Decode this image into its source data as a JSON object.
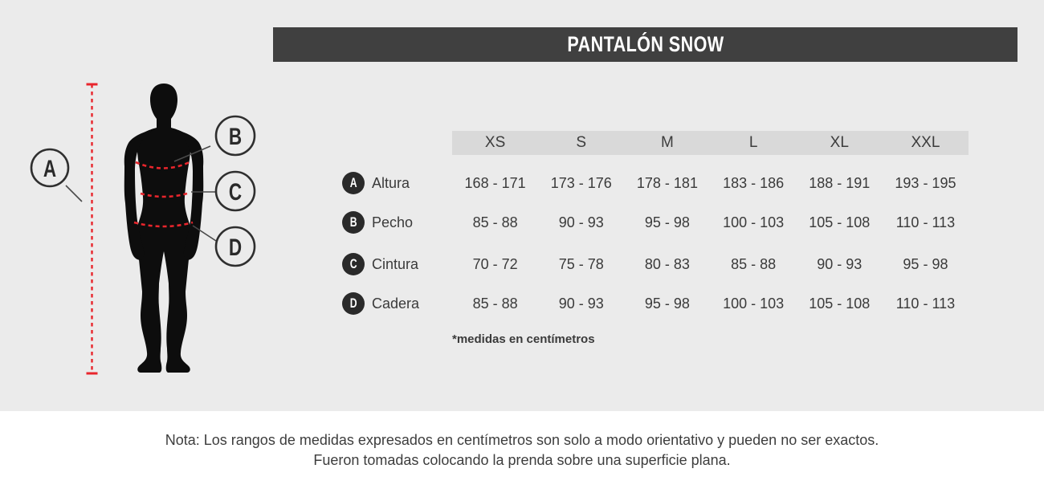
{
  "title": "PANTALÓN SNOW",
  "table": {
    "sizes": [
      "XS",
      "S",
      "M",
      "L",
      "XL",
      "XXL"
    ],
    "rows": [
      {
        "key": "A",
        "label": "Altura",
        "values": [
          "168 - 171",
          "173 - 176",
          "178 - 181",
          "183 - 186",
          "188 - 191",
          "193 - 195"
        ]
      },
      {
        "key": "B",
        "label": "Pecho",
        "values": [
          "85 - 88",
          "90 - 93",
          "95 - 98",
          "100 - 103",
          "105 - 108",
          "110 - 113"
        ]
      },
      {
        "key": "C",
        "label": "Cintura",
        "values": [
          "70 - 72",
          "75 - 78",
          "80 - 83",
          "85 - 88",
          "90 - 93",
          "95 - 98"
        ]
      },
      {
        "key": "D",
        "label": "Cadera",
        "values": [
          "85 - 88",
          "90 - 93",
          "95 - 98",
          "100 - 103",
          "105 - 108",
          "110 - 113"
        ]
      }
    ],
    "footnote": "*medidas en centímetros"
  },
  "diagram": {
    "labels": {
      "a": "A",
      "b": "B",
      "c": "C",
      "d": "D"
    }
  },
  "note": {
    "line1": "Nota: Los rangos de medidas expresados en centímetros son solo a modo orientativo y pueden no ser exactos.",
    "line2": "Fueron tomadas colocando la prenda sobre una superficie plana."
  },
  "colors": {
    "background_gray": "#ebebeb",
    "title_bar": "#404040",
    "header_bar": "#d9d9d9",
    "text": "#3a3a3a",
    "badge": "#2a2a2a",
    "measure_red": "#e8252c"
  }
}
